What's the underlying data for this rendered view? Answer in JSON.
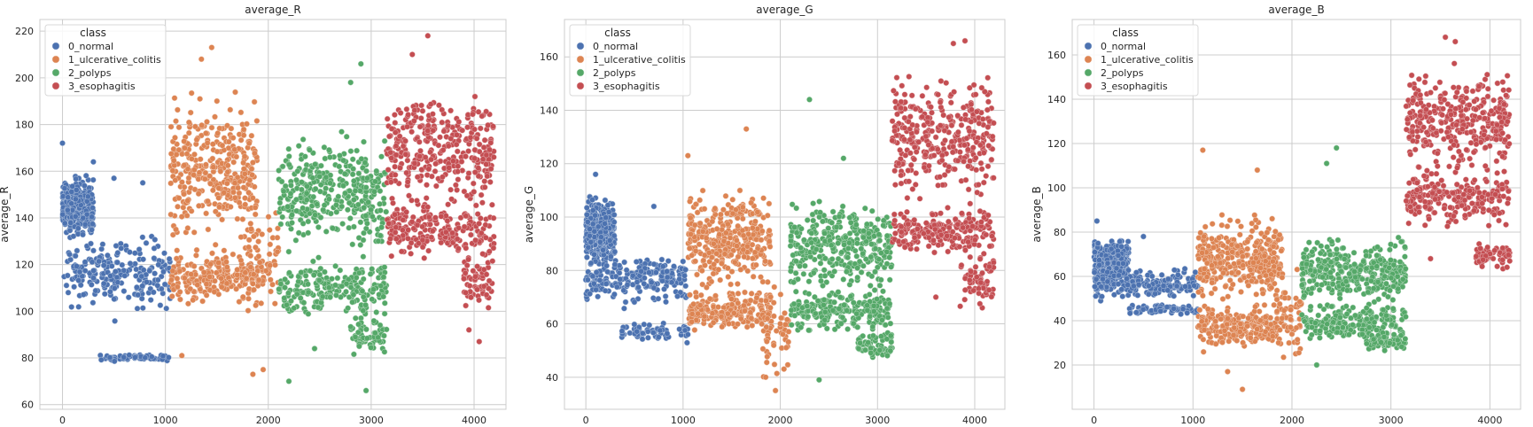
{
  "chart_data": [
    {
      "type": "scatter",
      "title": "average_R",
      "xlabel": "",
      "ylabel": "average_R",
      "xlim": [
        -220,
        4310
      ],
      "ylim": [
        58,
        225
      ],
      "xticks": [
        0,
        1000,
        2000,
        3000,
        4000
      ],
      "yticks": [
        60,
        80,
        100,
        120,
        140,
        160,
        180,
        200,
        220
      ],
      "grid": true,
      "legend": {
        "title": "class",
        "placement": "top-left"
      },
      "series": [
        {
          "name": "0_normal",
          "color": "#4c72b0",
          "x_range": [
            0,
            1050
          ],
          "clusters": [
            [
              0,
              300,
              130,
              160
            ],
            [
              0,
              1050,
              95,
              135
            ],
            [
              350,
              1050,
              78,
              82
            ]
          ],
          "points": [
            [
              0,
              172
            ],
            [
              300,
              164
            ],
            [
              500,
              157
            ],
            [
              780,
              155
            ]
          ]
        },
        {
          "name": "1_ulcerative_colitis",
          "color": "#dd8452",
          "x_range": [
            1050,
            2100
          ],
          "clusters": [
            [
              1050,
              1900,
              120,
              200
            ],
            [
              1050,
              1900,
              100,
              130
            ],
            [
              1800,
              2100,
              90,
              150
            ]
          ],
          "points": [
            [
              1450,
              213
            ],
            [
              1350,
              208
            ],
            [
              1850,
              73
            ],
            [
              1950,
              75
            ],
            [
              1160,
              81
            ]
          ]
        },
        {
          "name": "2_polyps",
          "color": "#55a868",
          "x_range": [
            2100,
            3150
          ],
          "clusters": [
            [
              2100,
              3150,
              120,
              180
            ],
            [
              2100,
              3150,
              95,
              125
            ],
            [
              2800,
              3150,
              80,
              100
            ]
          ],
          "points": [
            [
              2900,
              206
            ],
            [
              2800,
              198
            ],
            [
              2450,
              84
            ],
            [
              2200,
              70
            ],
            [
              2950,
              66
            ]
          ]
        },
        {
          "name": "3_esophagitis",
          "color": "#c44e52",
          "x_range": [
            3150,
            4200
          ],
          "clusters": [
            [
              3150,
              4200,
              140,
              200
            ],
            [
              3150,
              4200,
              120,
              150
            ],
            [
              3900,
              4200,
              95,
              130
            ]
          ],
          "points": [
            [
              3550,
              218
            ],
            [
              3400,
              210
            ],
            [
              4050,
              87
            ],
            [
              3950,
              92
            ]
          ]
        }
      ]
    },
    {
      "type": "scatter",
      "title": "average_G",
      "xlabel": "",
      "ylabel": "average_G",
      "xlim": [
        -220,
        4310
      ],
      "ylim": [
        28,
        174
      ],
      "xticks": [
        0,
        1000,
        2000,
        3000,
        4000
      ],
      "yticks": [
        40,
        60,
        80,
        100,
        120,
        140,
        160
      ],
      "grid": true,
      "legend": {
        "title": "class",
        "placement": "top-left"
      },
      "series": [
        {
          "name": "0_normal",
          "color": "#4c72b0",
          "x_range": [
            0,
            1050
          ],
          "clusters": [
            [
              0,
              300,
              80,
              110
            ],
            [
              0,
              1050,
              65,
              90
            ],
            [
              350,
              1050,
              52,
              62
            ]
          ],
          "points": [
            [
              100,
              116
            ],
            [
              700,
              104
            ]
          ]
        },
        {
          "name": "1_ulcerative_colitis",
          "color": "#dd8452",
          "x_range": [
            1050,
            2100
          ],
          "clusters": [
            [
              1050,
              1900,
              70,
              115
            ],
            [
              1050,
              1900,
              55,
              75
            ],
            [
              1800,
              2100,
              35,
              80
            ]
          ],
          "points": [
            [
              1650,
              133
            ],
            [
              1050,
              123
            ],
            [
              1950,
              35
            ],
            [
              1850,
              40
            ]
          ]
        },
        {
          "name": "2_polyps",
          "color": "#55a868",
          "x_range": [
            2100,
            3150
          ],
          "clusters": [
            [
              2100,
              3150,
              70,
              110
            ],
            [
              2100,
              3150,
              55,
              75
            ],
            [
              2800,
              3150,
              45,
              60
            ]
          ],
          "points": [
            [
              2300,
              144
            ],
            [
              2650,
              122
            ],
            [
              2400,
              39
            ]
          ]
        },
        {
          "name": "3_esophagitis",
          "color": "#c44e52",
          "x_range": [
            3150,
            4200
          ],
          "clusters": [
            [
              3150,
              4200,
              100,
              160
            ],
            [
              3150,
              4200,
              85,
              105
            ],
            [
              3850,
              4200,
              63,
              90
            ]
          ],
          "points": [
            [
              3780,
              165
            ],
            [
              3900,
              166
            ],
            [
              3600,
              70
            ]
          ]
        }
      ]
    },
    {
      "type": "scatter",
      "title": "average_B",
      "xlabel": "",
      "ylabel": "average_B",
      "xlim": [
        -220,
        4310
      ],
      "ylim": [
        0,
        176
      ],
      "xticks": [
        0,
        1000,
        2000,
        3000,
        4000
      ],
      "yticks": [
        20,
        40,
        60,
        80,
        100,
        120,
        140,
        160
      ],
      "grid": true,
      "legend": {
        "title": "class",
        "placement": "top-left"
      },
      "series": [
        {
          "name": "0_normal",
          "color": "#4c72b0",
          "x_range": [
            0,
            1050
          ],
          "clusters": [
            [
              0,
              350,
              55,
              80
            ],
            [
              0,
              1050,
              48,
              65
            ],
            [
              350,
              1050,
              42,
              48
            ]
          ],
          "points": [
            [
              30,
              85
            ],
            [
              500,
              78
            ]
          ]
        },
        {
          "name": "1_ulcerative_colitis",
          "color": "#dd8452",
          "x_range": [
            1050,
            2100
          ],
          "clusters": [
            [
              1050,
              1900,
              45,
              90
            ],
            [
              1050,
              1900,
              25,
              50
            ],
            [
              1800,
              2100,
              18,
              70
            ]
          ],
          "points": [
            [
              1100,
              117
            ],
            [
              1650,
              108
            ],
            [
              1500,
              9
            ],
            [
              1350,
              17
            ]
          ]
        },
        {
          "name": "2_polyps",
          "color": "#55a868",
          "x_range": [
            2100,
            3150
          ],
          "clusters": [
            [
              2100,
              3150,
              45,
              80
            ],
            [
              2100,
              3150,
              28,
              50
            ],
            [
              2750,
              3150,
              25,
              35
            ]
          ],
          "points": [
            [
              2450,
              118
            ],
            [
              2350,
              111
            ],
            [
              2250,
              20
            ]
          ]
        },
        {
          "name": "3_esophagitis",
          "color": "#c44e52",
          "x_range": [
            3150,
            4200
          ],
          "clusters": [
            [
              3150,
              4200,
              100,
              160
            ],
            [
              3150,
              4200,
              80,
              110
            ],
            [
              3850,
              4200,
              62,
              78
            ]
          ],
          "points": [
            [
              3550,
              168
            ],
            [
              3650,
              166
            ],
            [
              3400,
              68
            ]
          ]
        }
      ]
    }
  ]
}
